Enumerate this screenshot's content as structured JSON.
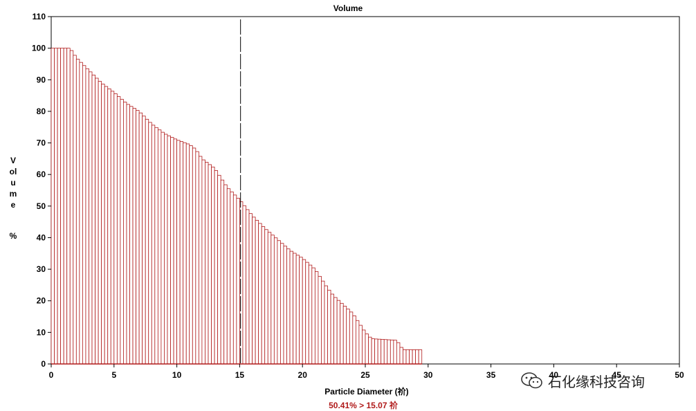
{
  "chart_data": {
    "type": "bar",
    "title": "Volume",
    "ylabel": "Volume",
    "ylabel_unit": "%",
    "xlabel": "Particle Diameter (祄)",
    "annotation": "50.41% > 15.07 祄",
    "xlim": [
      0,
      50
    ],
    "ylim": [
      0,
      110
    ],
    "xticks": [
      0,
      5,
      10,
      15,
      20,
      25,
      30,
      35,
      40,
      45,
      50
    ],
    "yticks": [
      0,
      10,
      20,
      30,
      40,
      50,
      60,
      70,
      80,
      90,
      100,
      110
    ],
    "marker_x": 15.07,
    "bar_color": "#b01a1a",
    "marker_color": "#000000",
    "profile": [
      [
        0,
        100
      ],
      [
        1.5,
        100
      ],
      [
        2,
        97
      ],
      [
        3,
        93
      ],
      [
        4,
        89
      ],
      [
        5,
        86
      ],
      [
        6,
        82.5
      ],
      [
        7,
        80
      ],
      [
        8,
        76
      ],
      [
        9,
        73
      ],
      [
        10,
        71
      ],
      [
        11,
        69.5
      ],
      [
        11.5,
        68
      ],
      [
        12,
        65
      ],
      [
        13,
        62
      ],
      [
        14,
        56
      ],
      [
        15,
        52
      ],
      [
        16,
        47
      ],
      [
        17,
        43
      ],
      [
        18,
        39.5
      ],
      [
        19,
        36
      ],
      [
        20,
        33.5
      ],
      [
        21,
        30
      ],
      [
        22,
        24
      ],
      [
        22.5,
        21.5
      ],
      [
        24,
        16
      ],
      [
        25,
        10
      ],
      [
        25.5,
        8
      ],
      [
        27.5,
        7.5
      ],
      [
        28,
        4.5
      ],
      [
        29.5,
        4.5
      ]
    ]
  },
  "watermark": {
    "icon": "wechat-icon",
    "text": "石化缘科技咨询"
  }
}
